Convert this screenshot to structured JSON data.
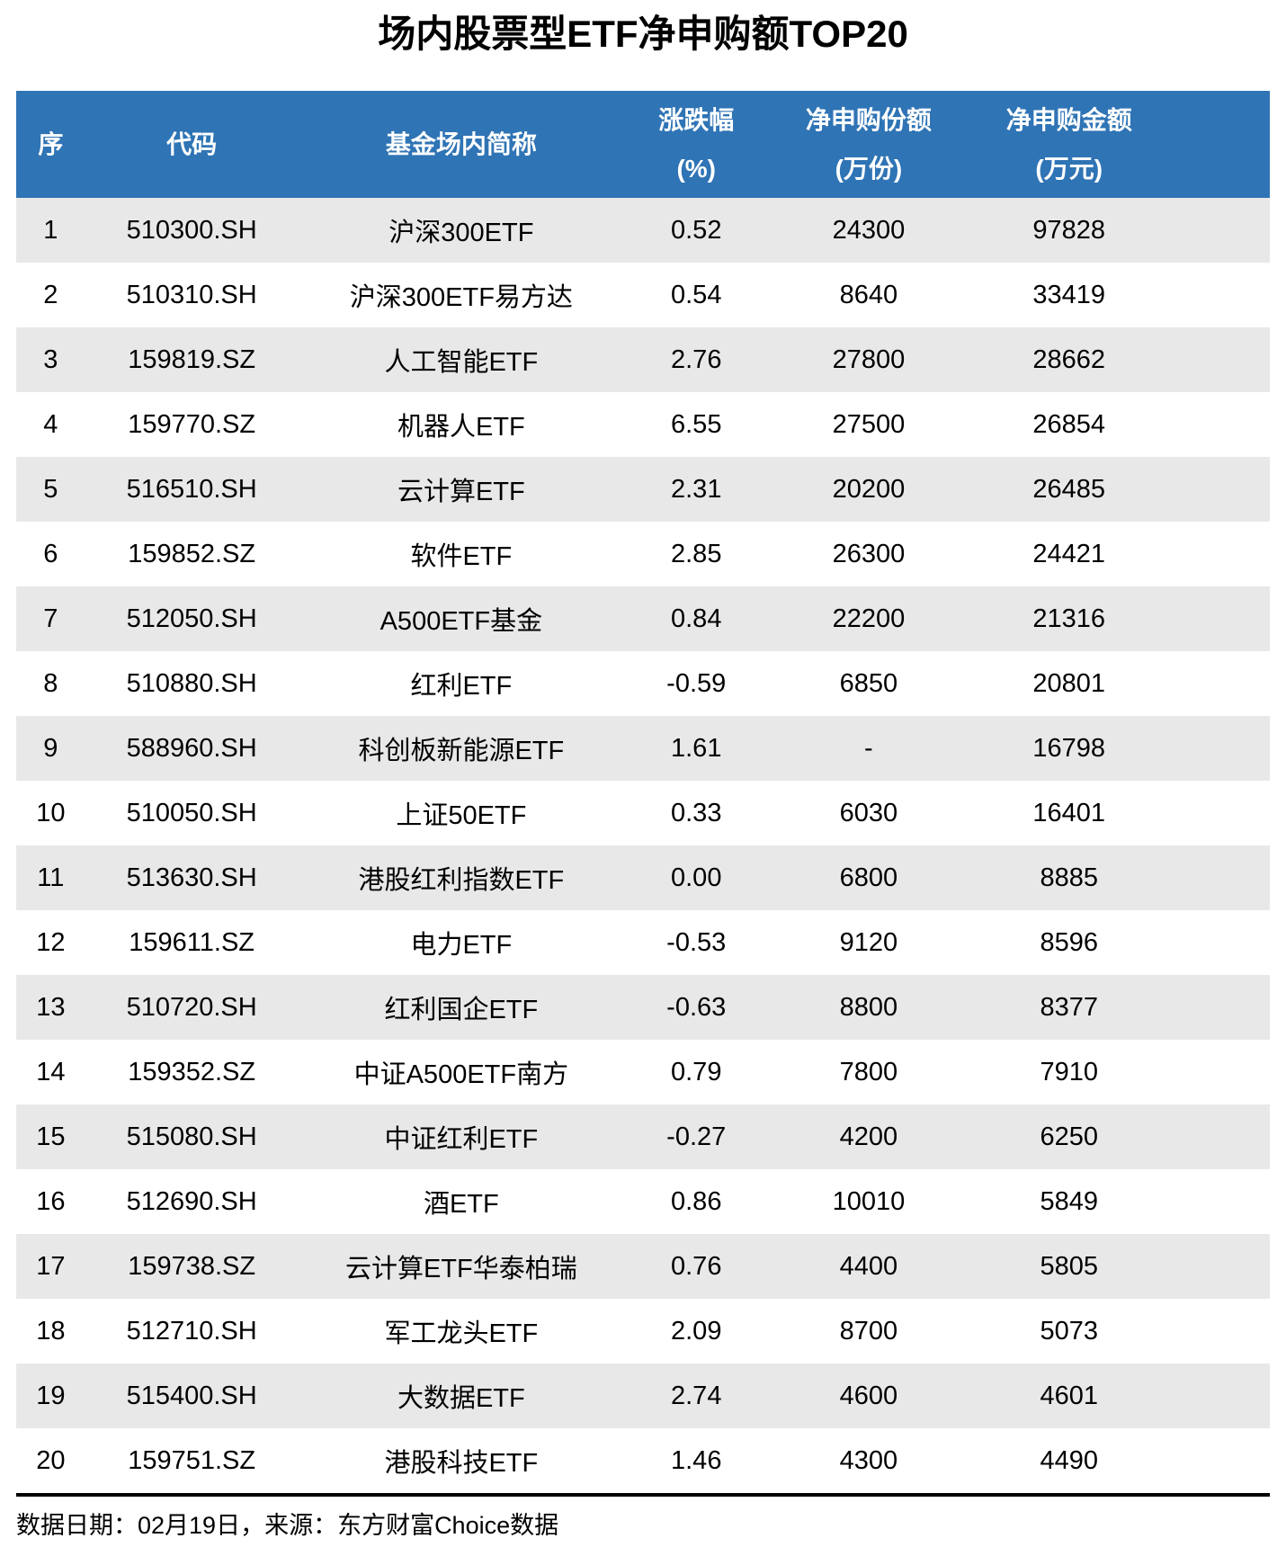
{
  "chart_data": {
    "type": "table",
    "title": "场内股票型ETF净申购额TOP20",
    "columns": [
      {
        "line1": "序",
        "line2": ""
      },
      {
        "line1": "代码",
        "line2": ""
      },
      {
        "line1": "基金场内简称",
        "line2": ""
      },
      {
        "line1": "涨跌幅",
        "line2": "(%)"
      },
      {
        "line1": "净申购份额",
        "line2": "(万份)"
      },
      {
        "line1": "净申购金额",
        "line2": "(万元)"
      }
    ],
    "rows": [
      {
        "rank": "1",
        "code": "510300.SH",
        "name": "沪深300ETF",
        "change": "0.52",
        "shares": "24300",
        "amount": "97828"
      },
      {
        "rank": "2",
        "code": "510310.SH",
        "name": "沪深300ETF易方达",
        "change": "0.54",
        "shares": "8640",
        "amount": "33419"
      },
      {
        "rank": "3",
        "code": "159819.SZ",
        "name": "人工智能ETF",
        "change": "2.76",
        "shares": "27800",
        "amount": "28662"
      },
      {
        "rank": "4",
        "code": "159770.SZ",
        "name": "机器人ETF",
        "change": "6.55",
        "shares": "27500",
        "amount": "26854"
      },
      {
        "rank": "5",
        "code": "516510.SH",
        "name": "云计算ETF",
        "change": "2.31",
        "shares": "20200",
        "amount": "26485"
      },
      {
        "rank": "6",
        "code": "159852.SZ",
        "name": "软件ETF",
        "change": "2.85",
        "shares": "26300",
        "amount": "24421"
      },
      {
        "rank": "7",
        "code": "512050.SH",
        "name": "A500ETF基金",
        "change": "0.84",
        "shares": "22200",
        "amount": "21316"
      },
      {
        "rank": "8",
        "code": "510880.SH",
        "name": "红利ETF",
        "change": "-0.59",
        "shares": "6850",
        "amount": "20801"
      },
      {
        "rank": "9",
        "code": "588960.SH",
        "name": "科创板新能源ETF",
        "change": "1.61",
        "shares": "-",
        "amount": "16798"
      },
      {
        "rank": "10",
        "code": "510050.SH",
        "name": "上证50ETF",
        "change": "0.33",
        "shares": "6030",
        "amount": "16401"
      },
      {
        "rank": "11",
        "code": "513630.SH",
        "name": "港股红利指数ETF",
        "change": "0.00",
        "shares": "6800",
        "amount": "8885"
      },
      {
        "rank": "12",
        "code": "159611.SZ",
        "name": "电力ETF",
        "change": "-0.53",
        "shares": "9120",
        "amount": "8596"
      },
      {
        "rank": "13",
        "code": "510720.SH",
        "name": "红利国企ETF",
        "change": "-0.63",
        "shares": "8800",
        "amount": "8377"
      },
      {
        "rank": "14",
        "code": "159352.SZ",
        "name": "中证A500ETF南方",
        "change": "0.79",
        "shares": "7800",
        "amount": "7910"
      },
      {
        "rank": "15",
        "code": "515080.SH",
        "name": "中证红利ETF",
        "change": "-0.27",
        "shares": "4200",
        "amount": "6250"
      },
      {
        "rank": "16",
        "code": "512690.SH",
        "name": "酒ETF",
        "change": "0.86",
        "shares": "10010",
        "amount": "5849"
      },
      {
        "rank": "17",
        "code": "159738.SZ",
        "name": "云计算ETF华泰柏瑞",
        "change": "0.76",
        "shares": "4400",
        "amount": "5805"
      },
      {
        "rank": "18",
        "code": "512710.SH",
        "name": "军工龙头ETF",
        "change": "2.09",
        "shares": "8700",
        "amount": "5073"
      },
      {
        "rank": "19",
        "code": "515400.SH",
        "name": "大数据ETF",
        "change": "2.74",
        "shares": "4600",
        "amount": "4601"
      },
      {
        "rank": "20",
        "code": "159751.SZ",
        "name": "港股科技ETF",
        "change": "1.46",
        "shares": "4300",
        "amount": "4490"
      }
    ],
    "layout": {
      "legend": "none",
      "grid": "off",
      "stripe": "odd-rows"
    }
  },
  "footer": {
    "text": "数据日期：02月19日，来源：东方财富Choice数据"
  },
  "colors": {
    "header_bg": "#2F74B5",
    "header_text": "#FFFFFF",
    "stripe_bg": "#E8E8E8",
    "body_text": "#000000",
    "divider": "#000000"
  }
}
